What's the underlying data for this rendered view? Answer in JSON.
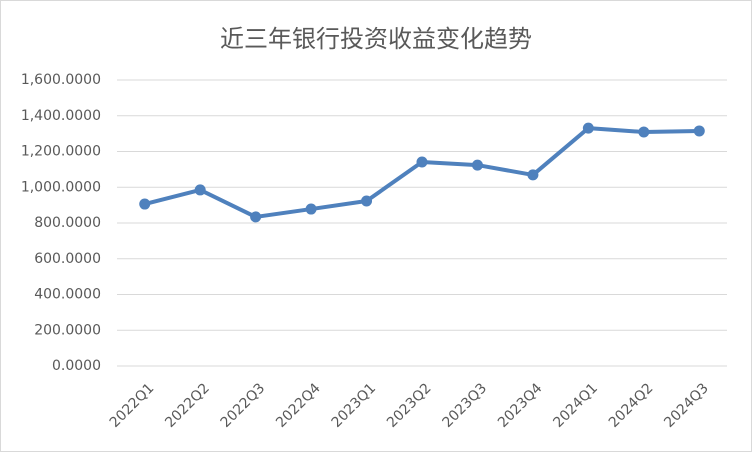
{
  "chart_data": {
    "type": "line",
    "title": "近三年银行投资收益变化趋势",
    "categories": [
      "2022Q1",
      "2022Q2",
      "2022Q3",
      "2022Q4",
      "2023Q1",
      "2023Q2",
      "2023Q3",
      "2023Q4",
      "2024Q1",
      "2024Q2",
      "2024Q3"
    ],
    "values": [
      906,
      985,
      834,
      878,
      923,
      1141,
      1124,
      1069,
      1331,
      1309,
      1315
    ],
    "color": "#4f81bd",
    "ylim": [
      0,
      1600
    ],
    "yticks": [
      {
        "value": 0,
        "label": "0.0000"
      },
      {
        "value": 200,
        "label": "200.0000"
      },
      {
        "value": 400,
        "label": "400.0000"
      },
      {
        "value": 600,
        "label": "600.0000"
      },
      {
        "value": 800,
        "label": "800.0000"
      },
      {
        "value": 1000,
        "label": "1,000.0000"
      },
      {
        "value": 1200,
        "label": "1,200.0000"
      },
      {
        "value": 1400,
        "label": "1,400.0000"
      },
      {
        "value": 1600,
        "label": "1,600.0000"
      }
    ],
    "grid": true
  }
}
